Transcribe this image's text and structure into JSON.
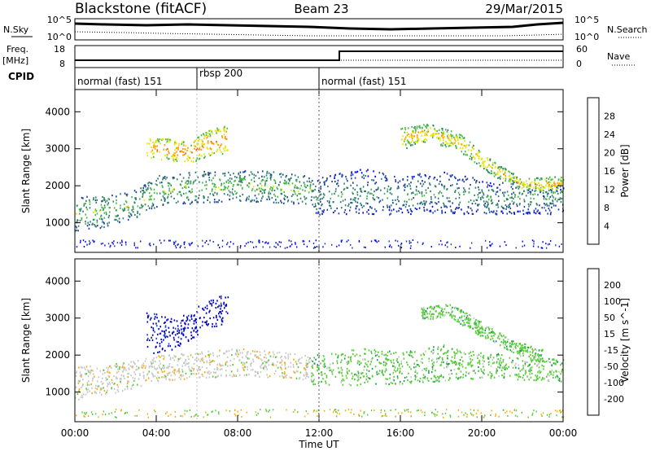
{
  "header": {
    "title": "Blackstone (fitACF)",
    "beam": "Beam 23",
    "date": "29/Mar/2015"
  },
  "top_panels": {
    "nsky_label": "N.Sky",
    "nsearch_label": "N.Search",
    "noise_ticks": [
      "10^5",
      "10^0"
    ],
    "freq_label": "Freq.",
    "freq_unit": "[MHz]",
    "freq_ticks": [
      "18",
      "8"
    ],
    "nave_label": "Nave",
    "nave_ticks": [
      "60",
      "0"
    ],
    "cpid_label": "CPID",
    "cpid_segments": [
      {
        "label": "normal (fast) 151",
        "start_hour": 0
      },
      {
        "label": "rbsp 200",
        "start_hour": 6
      },
      {
        "label": "normal (fast) 151",
        "start_hour": 12
      }
    ],
    "freq_step_hour": 13
  },
  "x_axis": {
    "label": "Time UT",
    "ticks": [
      "00:00",
      "04:00",
      "08:00",
      "12:00",
      "16:00",
      "20:00",
      "00:00"
    ],
    "range_hours": [
      0,
      24
    ]
  },
  "chart_data": [
    {
      "type": "heatmap",
      "ylabel": "Slant Range [km]",
      "yticks": [
        "1000",
        "2000",
        "3000",
        "4000"
      ],
      "ylim": [
        200,
        4600
      ],
      "xlim": [
        0,
        24
      ],
      "colorbar": {
        "label": "Power [dB]",
        "ticks": [
          "4",
          "8",
          "12",
          "16",
          "20",
          "24",
          "28"
        ],
        "range": [
          0,
          32
        ],
        "colors": [
          "#0000ff",
          "#1c3fa8",
          "#2e7d6e",
          "#48b848",
          "#e6e600",
          "#ff9900",
          "#ff5500",
          "#e60000"
        ]
      },
      "echo_bands": [
        {
          "x": [
            0,
            1.5,
            3,
            4,
            6,
            8,
            10,
            11.6
          ],
          "y_low": [
            800,
            900,
            1150,
            1450,
            1550,
            1600,
            1550,
            1500
          ],
          "y_high": [
            1700,
            1800,
            1900,
            2300,
            2400,
            2450,
            2400,
            2300
          ],
          "level": 10
        },
        {
          "x": [
            3.5,
            4.5,
            5.5,
            6.5,
            7.5
          ],
          "y_low": [
            2800,
            2700,
            2600,
            2800,
            2900
          ],
          "y_high": [
            3300,
            3300,
            3200,
            3500,
            3700
          ],
          "level": 18
        },
        {
          "x": [
            11.6,
            14,
            16,
            18,
            20,
            22,
            24
          ],
          "y_low": [
            1250,
            1200,
            1250,
            1250,
            1250,
            1250,
            1250
          ],
          "y_high": [
            2200,
            2500,
            2300,
            2400,
            2200,
            2100,
            2000
          ],
          "level": 7
        },
        {
          "x": [
            16,
            17.5,
            19,
            20.5,
            22,
            24
          ],
          "y_low": [
            3000,
            3200,
            2900,
            2300,
            1900,
            1800
          ],
          "y_high": [
            3600,
            3700,
            3400,
            2700,
            2200,
            2300
          ],
          "level": 15
        }
      ]
    },
    {
      "type": "heatmap",
      "ylabel": "Slant Range [km]",
      "yticks": [
        "1000",
        "2000",
        "3000",
        "4000"
      ],
      "ylim": [
        200,
        4600
      ],
      "xlim": [
        0,
        24
      ],
      "colorbar": {
        "label": "Velocity [m s^-1]",
        "ticks": [
          "200",
          "100",
          "50",
          "15",
          "-15",
          "-50",
          "-100",
          "-200"
        ],
        "colors": [
          "#0000c8",
          "#1e50c8",
          "#1a9a5a",
          "#55cc33",
          "#c8c8c8",
          "#ffaa00",
          "#ff7700",
          "#ff3300",
          "#dd0000"
        ]
      },
      "echo_bands": [
        {
          "x": [
            0,
            2,
            4,
            6,
            8,
            10,
            11.6
          ],
          "y_low": [
            800,
            1000,
            1300,
            1400,
            1450,
            1400,
            1350
          ],
          "y_high": [
            1700,
            1800,
            2000,
            2100,
            2200,
            2100,
            2000
          ],
          "category": "-15"
        },
        {
          "x": [
            3.5,
            5,
            6.5,
            7.5
          ],
          "y_low": [
            2000,
            2200,
            2700,
            2900
          ],
          "y_high": [
            3200,
            3000,
            3500,
            3700
          ],
          "category": "200"
        },
        {
          "x": [
            11.6,
            14,
            16,
            18,
            20,
            22,
            24
          ],
          "y_low": [
            1200,
            1200,
            1250,
            1300,
            1400,
            1350,
            1300
          ],
          "y_high": [
            2000,
            2200,
            2100,
            2300,
            2100,
            2000,
            1900
          ],
          "category": "15"
        },
        {
          "x": [
            17,
            18.5,
            20,
            21.5,
            23
          ],
          "y_low": [
            3000,
            3000,
            2500,
            2100,
            1800
          ],
          "y_high": [
            3300,
            3400,
            2900,
            2400,
            2200
          ],
          "category": "15"
        }
      ]
    }
  ]
}
